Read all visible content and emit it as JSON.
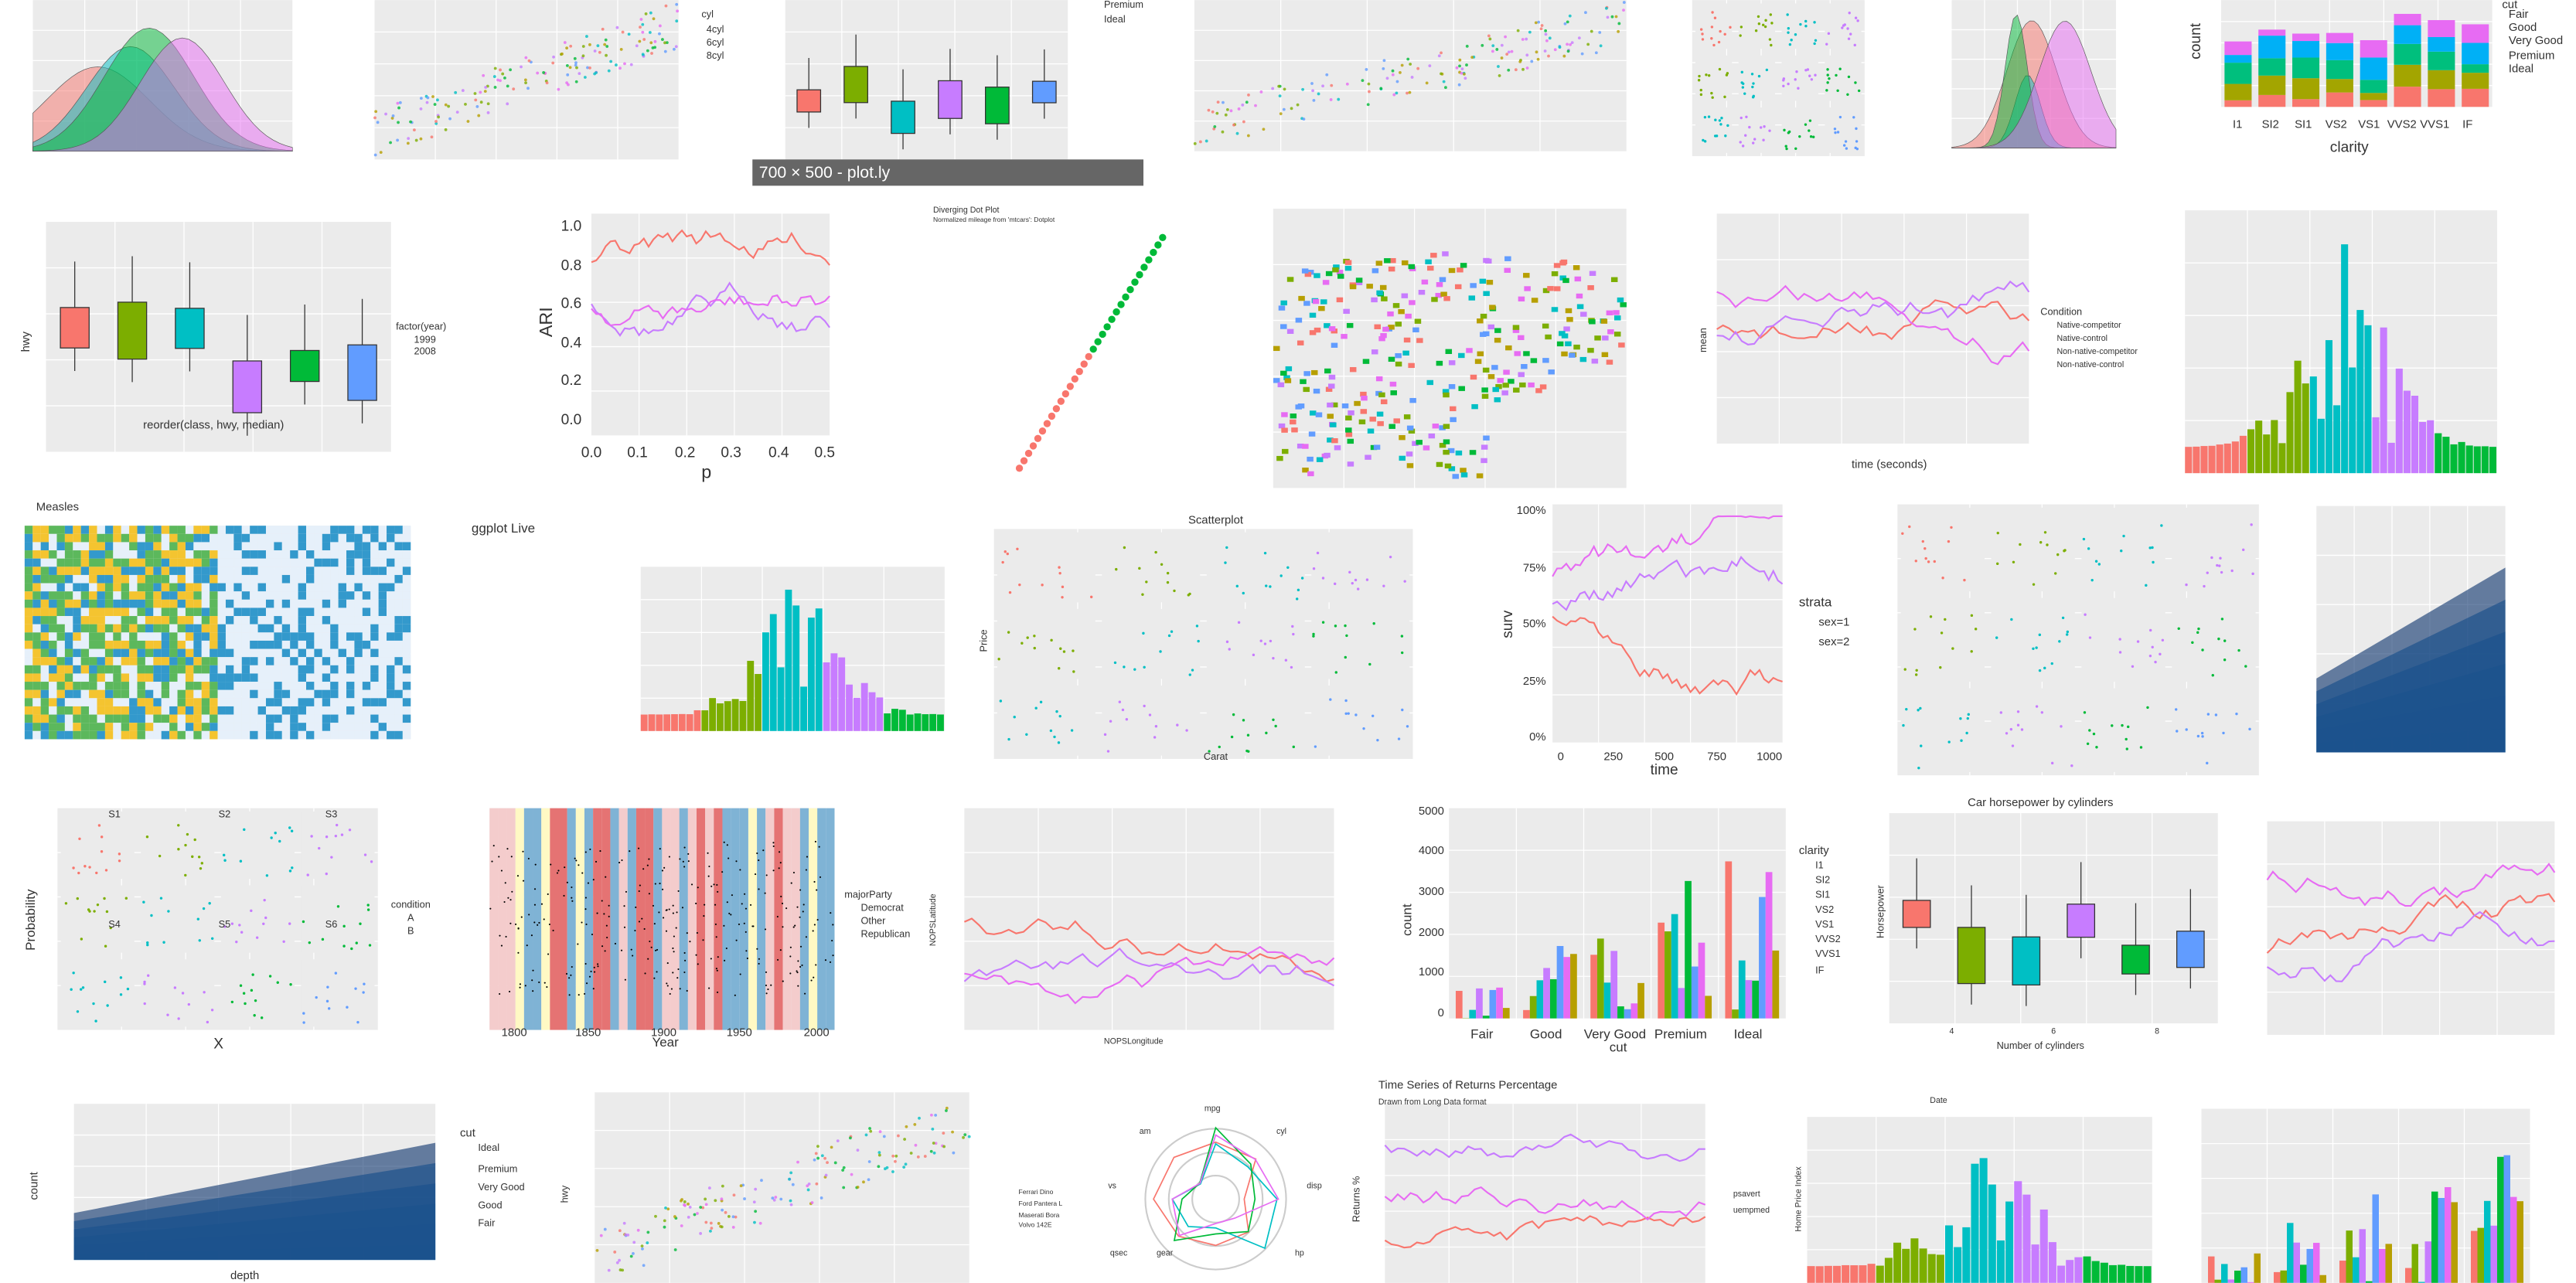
{
  "tooltip": "700 × 500 - plot.ly",
  "tiles": [
    {
      "labels": [
        "cyl",
        "4cyl",
        "6cyl",
        "8cyl"
      ]
    },
    {
      "labels": [
        "Premium",
        "Ideal"
      ]
    },
    {
      "labels": [
        "cut",
        "Fair",
        "Good",
        "Very Good",
        "Premium",
        "Ideal",
        "count",
        "clarity",
        "I1",
        "SI2",
        "SI1",
        "VS2",
        "VS1",
        "VVS2",
        "VVS1",
        "IF"
      ]
    },
    {
      "labels": [
        "hwy",
        "reorder(class, hwy, median)",
        "factor(year)",
        "1999",
        "2008"
      ]
    },
    {
      "labels": [
        "ARI",
        "p",
        "0.0",
        "0.2",
        "0.4",
        "0.6",
        "0.8",
        "1.0",
        "0.0",
        "0.1",
        "0.2",
        "0.3",
        "0.4",
        "0.5"
      ]
    },
    {
      "labels": [
        "Diverging Dot Plot",
        "Normalized mileage from 'mtcars': Dotplot"
      ]
    },
    {
      "labels": [
        "Condition",
        "Native-competitor",
        "Native-control",
        "Non-native-competitor",
        "Non-native-control",
        "time (seconds)",
        "mean"
      ]
    },
    {
      "labels": [
        "Measles"
      ]
    },
    {
      "labels": [
        "ggplot Live"
      ]
    },
    {
      "labels": [
        "Scatterplot",
        "Carat",
        "Price"
      ]
    },
    {
      "labels": [
        "strata",
        "sex=1",
        "sex=2",
        "surv",
        "time",
        "100%",
        "75%",
        "50%",
        "25%",
        "0%",
        "0",
        "250",
        "500",
        "750",
        "1000"
      ]
    },
    {
      "labels": [
        "S1",
        "S2",
        "S3",
        "S4",
        "S5",
        "S6",
        "condition",
        "A",
        "B",
        "Probability",
        "X"
      ]
    },
    {
      "labels": [
        "majorParty",
        "Democrat",
        "Other",
        "Republican",
        "Year",
        "1800",
        "1850",
        "1900",
        "1950",
        "2000"
      ]
    },
    {
      "labels": [
        "NOPSLongitude",
        "NOPSLatitude"
      ]
    },
    {
      "labels": [
        "clarity",
        "I1",
        "SI2",
        "SI1",
        "VS2",
        "VS1",
        "VVS2",
        "VVS1",
        "IF",
        "count",
        "cut",
        "Fair",
        "Good",
        "Very Good",
        "Premium",
        "Ideal",
        "0",
        "1000",
        "2000",
        "3000",
        "4000",
        "5000"
      ]
    },
    {
      "labels": [
        "Car horsepower by cylinders",
        "Number of cylinders",
        "Horsepower",
        "4",
        "6",
        "8"
      ]
    },
    {
      "labels": [
        "cut",
        "Ideal",
        "Premium",
        "Very Good",
        "Good",
        "Fair",
        "depth",
        "count"
      ]
    },
    {
      "labels": [
        "hwy"
      ]
    },
    {
      "labels": [
        "mpg",
        "cyl",
        "disp",
        "hp",
        "gear",
        "qsec",
        "vs",
        "am",
        "Ferrari Dino",
        "Ford Pantera L",
        "Maserati Bora",
        "Volvo 142E"
      ]
    },
    {
      "labels": [
        "Time Series of Returns Percentage",
        "Drawn from Long Data format",
        "Returns %",
        "psavert",
        "uempmed"
      ]
    },
    {
      "labels": [
        "Home Price Index",
        "Date"
      ]
    }
  ]
}
